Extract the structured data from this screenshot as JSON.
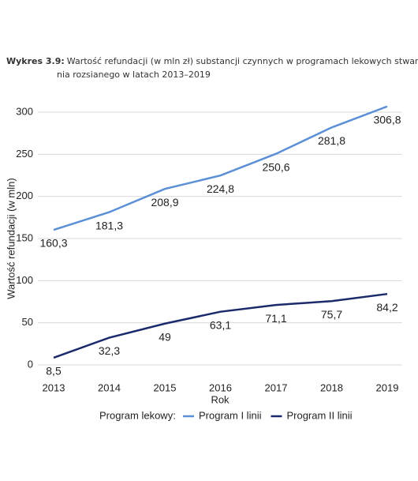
{
  "chart_data": {
    "type": "line",
    "title_label": "Wykres 3.9:",
    "title_lines": [
      "Wartość refundacji (w mln zł) substancji czynnych w programach lekowych stwardnie-",
      "nia rozsianego w latach 2013–2019"
    ],
    "x_label": "Rok",
    "y_label": "Wartość refundacji (w mln)",
    "legend_title": "Program lekowy:",
    "categories": [
      "2013",
      "2014",
      "2015",
      "2016",
      "2017",
      "2018",
      "2019"
    ],
    "series": [
      {
        "name": "Program I linii",
        "color": "#5b8fd6",
        "values": [
          160.3,
          181.3,
          208.9,
          224.8,
          250.6,
          281.8,
          306.8
        ],
        "value_labels": [
          "160,3",
          "181,3",
          "208,9",
          "224,8",
          "250,6",
          "281,8",
          "306,8"
        ]
      },
      {
        "name": "Program II linii",
        "color": "#1b2a6b",
        "values": [
          8.5,
          32.3,
          49,
          63.1,
          71.1,
          75.7,
          84.2
        ],
        "value_labels": [
          "8,5",
          "32,3",
          "49",
          "63,1",
          "71,1",
          "75,7",
          "84,2"
        ]
      }
    ],
    "ylim": [
      0,
      300
    ],
    "yticks": [
      0,
      50,
      100,
      150,
      200,
      250,
      300
    ],
    "grid": true
  }
}
